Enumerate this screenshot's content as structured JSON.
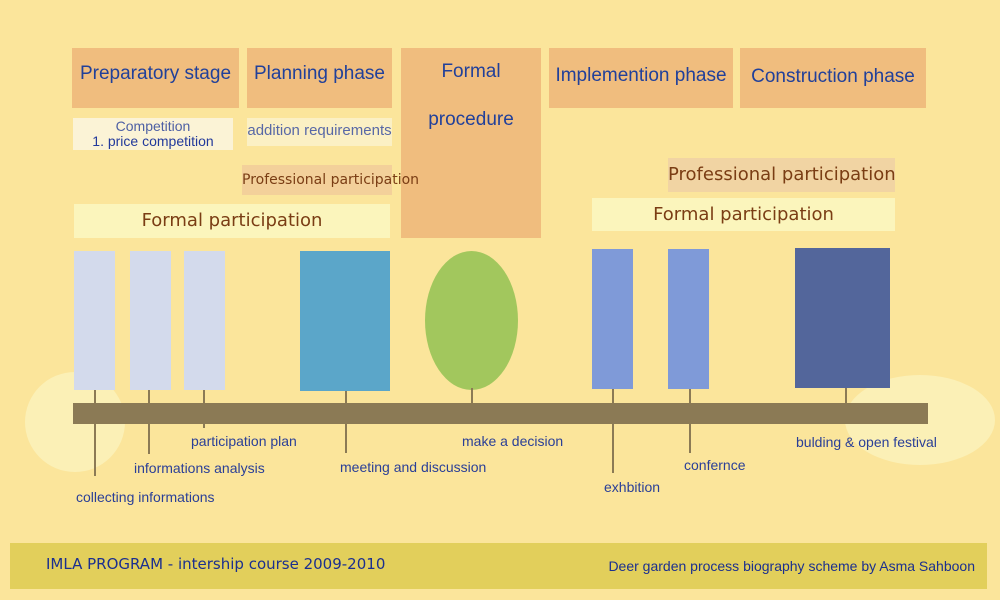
{
  "phases": [
    "Preparatory stage",
    "Planning phase",
    "Formal procedure",
    "Implemention phase",
    "Construction phase"
  ],
  "competition": {
    "line1": "Competition",
    "line2": "1. price competition"
  },
  "addition_requirements": "addition requirements",
  "professional_participation_left": "Professional participation",
  "professional_participation_right": "Professional participation",
  "formal_participation_left": "Formal participation",
  "formal_participation_right": "Formal participation",
  "events": [
    "collecting informations",
    "informations analysis",
    "participation plan",
    "meeting and discussion",
    "make a decision",
    "exhbition",
    "confernce",
    "bulding & open festival"
  ],
  "footer": {
    "left": "IMLA PROGRAM  -  intership course 2009-2010",
    "right": "Deer garden process biography scheme by Asma Sahboon"
  },
  "colors": {
    "background": "#fbe59b",
    "phase_box": "#f0bd7e",
    "timeline": "#8b7a55",
    "light_block": "#d3daec",
    "teal_block": "#5ba6c9",
    "green_ellipse": "#a2c75d",
    "periwinkle_block": "#7f9ad8",
    "dark_block": "#53669b"
  }
}
